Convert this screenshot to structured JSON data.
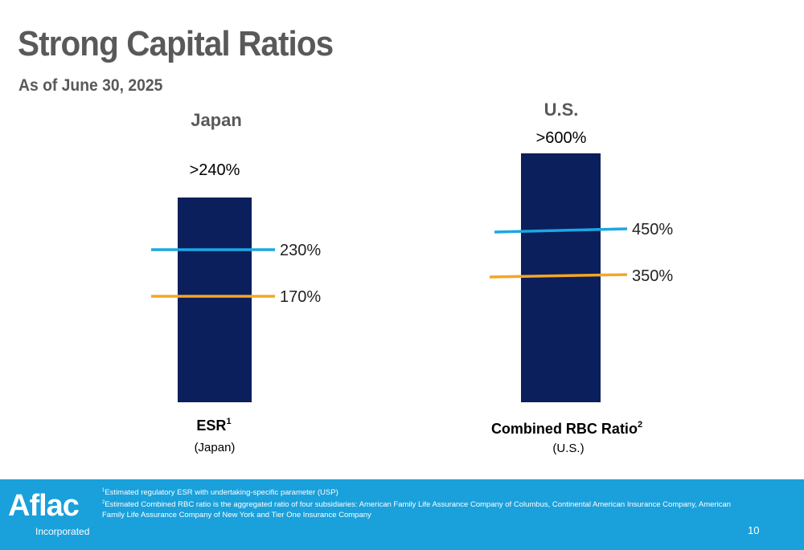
{
  "header": {
    "title": "Strong Capital Ratios",
    "subtitle": "As of June 30, 2025"
  },
  "chart_data": [
    {
      "type": "bar",
      "title": "Japan",
      "value_label": ">240%",
      "value": 240,
      "categories": [
        "ESR"
      ],
      "category_sup": "1",
      "category_sub": "(Japan)",
      "reference_lines": [
        {
          "label": "230%",
          "value": 230,
          "color": "#1ba7e3"
        },
        {
          "label": "170%",
          "value": 170,
          "color": "#f5a623"
        }
      ]
    },
    {
      "type": "bar",
      "title": "U.S.",
      "value_label": ">600%",
      "value": 600,
      "categories": [
        "Combined RBC Ratio"
      ],
      "category_sup": "2",
      "category_sub": "(U.S.)",
      "reference_lines": [
        {
          "label": "450%",
          "value": 450,
          "color": "#1ba7e3"
        },
        {
          "label": "350%",
          "value": 350,
          "color": "#f5a623"
        }
      ]
    }
  ],
  "colors": {
    "bar": "#0b1f5c",
    "title_gray": "#595959",
    "footer_blue": "#1aa0db"
  },
  "footer": {
    "logo": "Aflac",
    "logo_sub": "Incorporated",
    "note1_sup": "1",
    "note1": "Estimated regulatory ESR with undertaking-specific parameter (USP)",
    "note2_sup": "2",
    "note2": "Estimated Combined RBC ratio is the aggregated ratio of four subsidiaries: American Family Life Assurance Company of Columbus, Continental American Insurance Company, American Family Life Assurance Company of New York and Tier One Insurance Company",
    "page_number": "10"
  }
}
